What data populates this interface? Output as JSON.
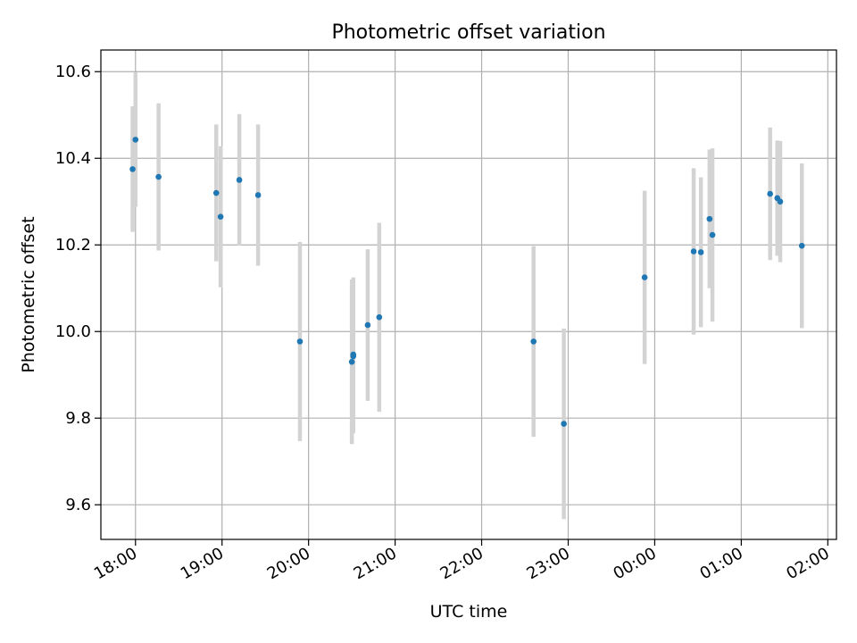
{
  "chart_data": {
    "type": "scatter",
    "title": "Photometric offset variation",
    "xlabel": "UTC time",
    "ylabel": "Photometric offset",
    "x_axis": {
      "scale": "time",
      "range": [
        "17:36",
        "02:06"
      ],
      "ticks": [
        "18:00",
        "19:00",
        "20:00",
        "21:00",
        "22:00",
        "23:00",
        "00:00",
        "01:00",
        "02:00"
      ]
    },
    "y_axis": {
      "range": [
        9.52,
        10.65
      ],
      "ticks": [
        "9.6",
        "9.8",
        "10.0",
        "10.2",
        "10.4",
        "10.6"
      ]
    },
    "grid": true,
    "colors": {
      "marker": "#1f77b4",
      "errorbar": "#d3d3d3",
      "grid": "#b0b0b0"
    },
    "points": [
      {
        "time": "17:58",
        "y": 10.375,
        "yerr": 0.145
      },
      {
        "time": "18:00",
        "y": 10.443,
        "yerr": 0.155
      },
      {
        "time": "18:16",
        "y": 10.357,
        "yerr": 0.17
      },
      {
        "time": "18:56",
        "y": 10.32,
        "yerr": 0.158
      },
      {
        "time": "18:59",
        "y": 10.265,
        "yerr": 0.163
      },
      {
        "time": "19:12",
        "y": 10.35,
        "yerr": 0.152
      },
      {
        "time": "19:25",
        "y": 10.315,
        "yerr": 0.163
      },
      {
        "time": "19:54",
        "y": 9.977,
        "yerr": 0.23
      },
      {
        "time": "20:30",
        "y": 9.93,
        "yerr": 0.19
      },
      {
        "time": "20:31",
        "y": 9.943,
        "yerr": 0.178
      },
      {
        "time": "20:31",
        "y": 9.947,
        "yerr": 0.178
      },
      {
        "time": "20:41",
        "y": 10.015,
        "yerr": 0.175
      },
      {
        "time": "20:49",
        "y": 10.033,
        "yerr": 0.218
      },
      {
        "time": "22:36",
        "y": 9.977,
        "yerr": 0.22
      },
      {
        "time": "22:57",
        "y": 9.787,
        "yerr": 0.22
      },
      {
        "time": "23:53",
        "y": 10.125,
        "yerr": 0.2
      },
      {
        "time": "00:27",
        "y": 10.185,
        "yerr": 0.192
      },
      {
        "time": "00:32",
        "y": 10.183,
        "yerr": 0.173
      },
      {
        "time": "00:38",
        "y": 10.26,
        "yerr": 0.16
      },
      {
        "time": "00:40",
        "y": 10.223,
        "yerr": 0.2
      },
      {
        "time": "01:20",
        "y": 10.318,
        "yerr": 0.153
      },
      {
        "time": "01:25",
        "y": 10.308,
        "yerr": 0.133
      },
      {
        "time": "01:27",
        "y": 10.3,
        "yerr": 0.14
      },
      {
        "time": "01:42",
        "y": 10.198,
        "yerr": 0.19
      }
    ]
  }
}
